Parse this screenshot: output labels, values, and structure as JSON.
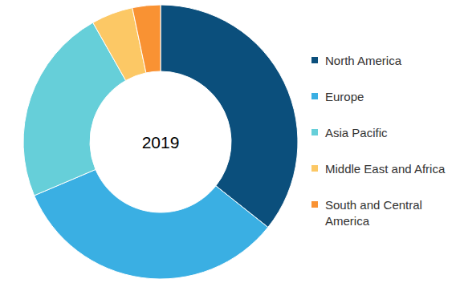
{
  "chart_data": {
    "type": "pie",
    "title": "2019",
    "categories": [
      "North America",
      "Europe",
      "Asia Pacific",
      "Middle East and Africa",
      "South and Central America"
    ],
    "values": [
      35.7,
      32.9,
      23.2,
      4.9,
      3.3
    ],
    "colors": [
      "#0b4f7c",
      "#3aafe3",
      "#66cfd9",
      "#fcc865",
      "#f99233"
    ],
    "legend": "right"
  }
}
